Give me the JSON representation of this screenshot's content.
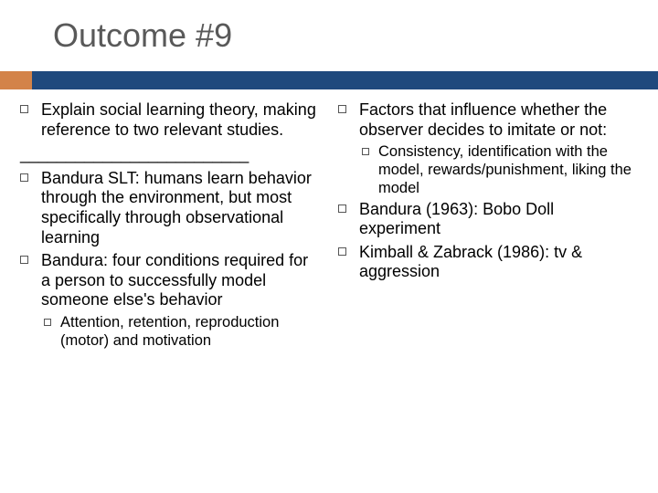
{
  "title": "Outcome #9",
  "colors": {
    "title_text": "#595959",
    "bar_accent": "#d38349",
    "bar_main": "#1f497d",
    "body_text": "#000000",
    "bullet_border": "#555555",
    "background": "#ffffff"
  },
  "typography": {
    "title_fontsize": 36,
    "body_fontsize": 18,
    "sub_fontsize": 16.5
  },
  "left": {
    "item1": "Explain social learning theory, making reference to two relevant studies.",
    "divider": "_________________________",
    "item2": "Bandura SLT: humans learn behavior through the environment, but most specifically through observational learning",
    "item3": "Bandura: four conditions required for a person to successfully model someone else's behavior",
    "sub1": "Attention, retention, reproduction (motor) and motivation"
  },
  "right": {
    "item1": "Factors that influence whether the observer decides to imitate or not:",
    "sub1": "Consistency, identification with the model, rewards/punishment, liking the model",
    "item2": "Bandura (1963): Bobo Doll experiment",
    "item3": "Kimball & Zabrack (1986): tv & aggression"
  }
}
